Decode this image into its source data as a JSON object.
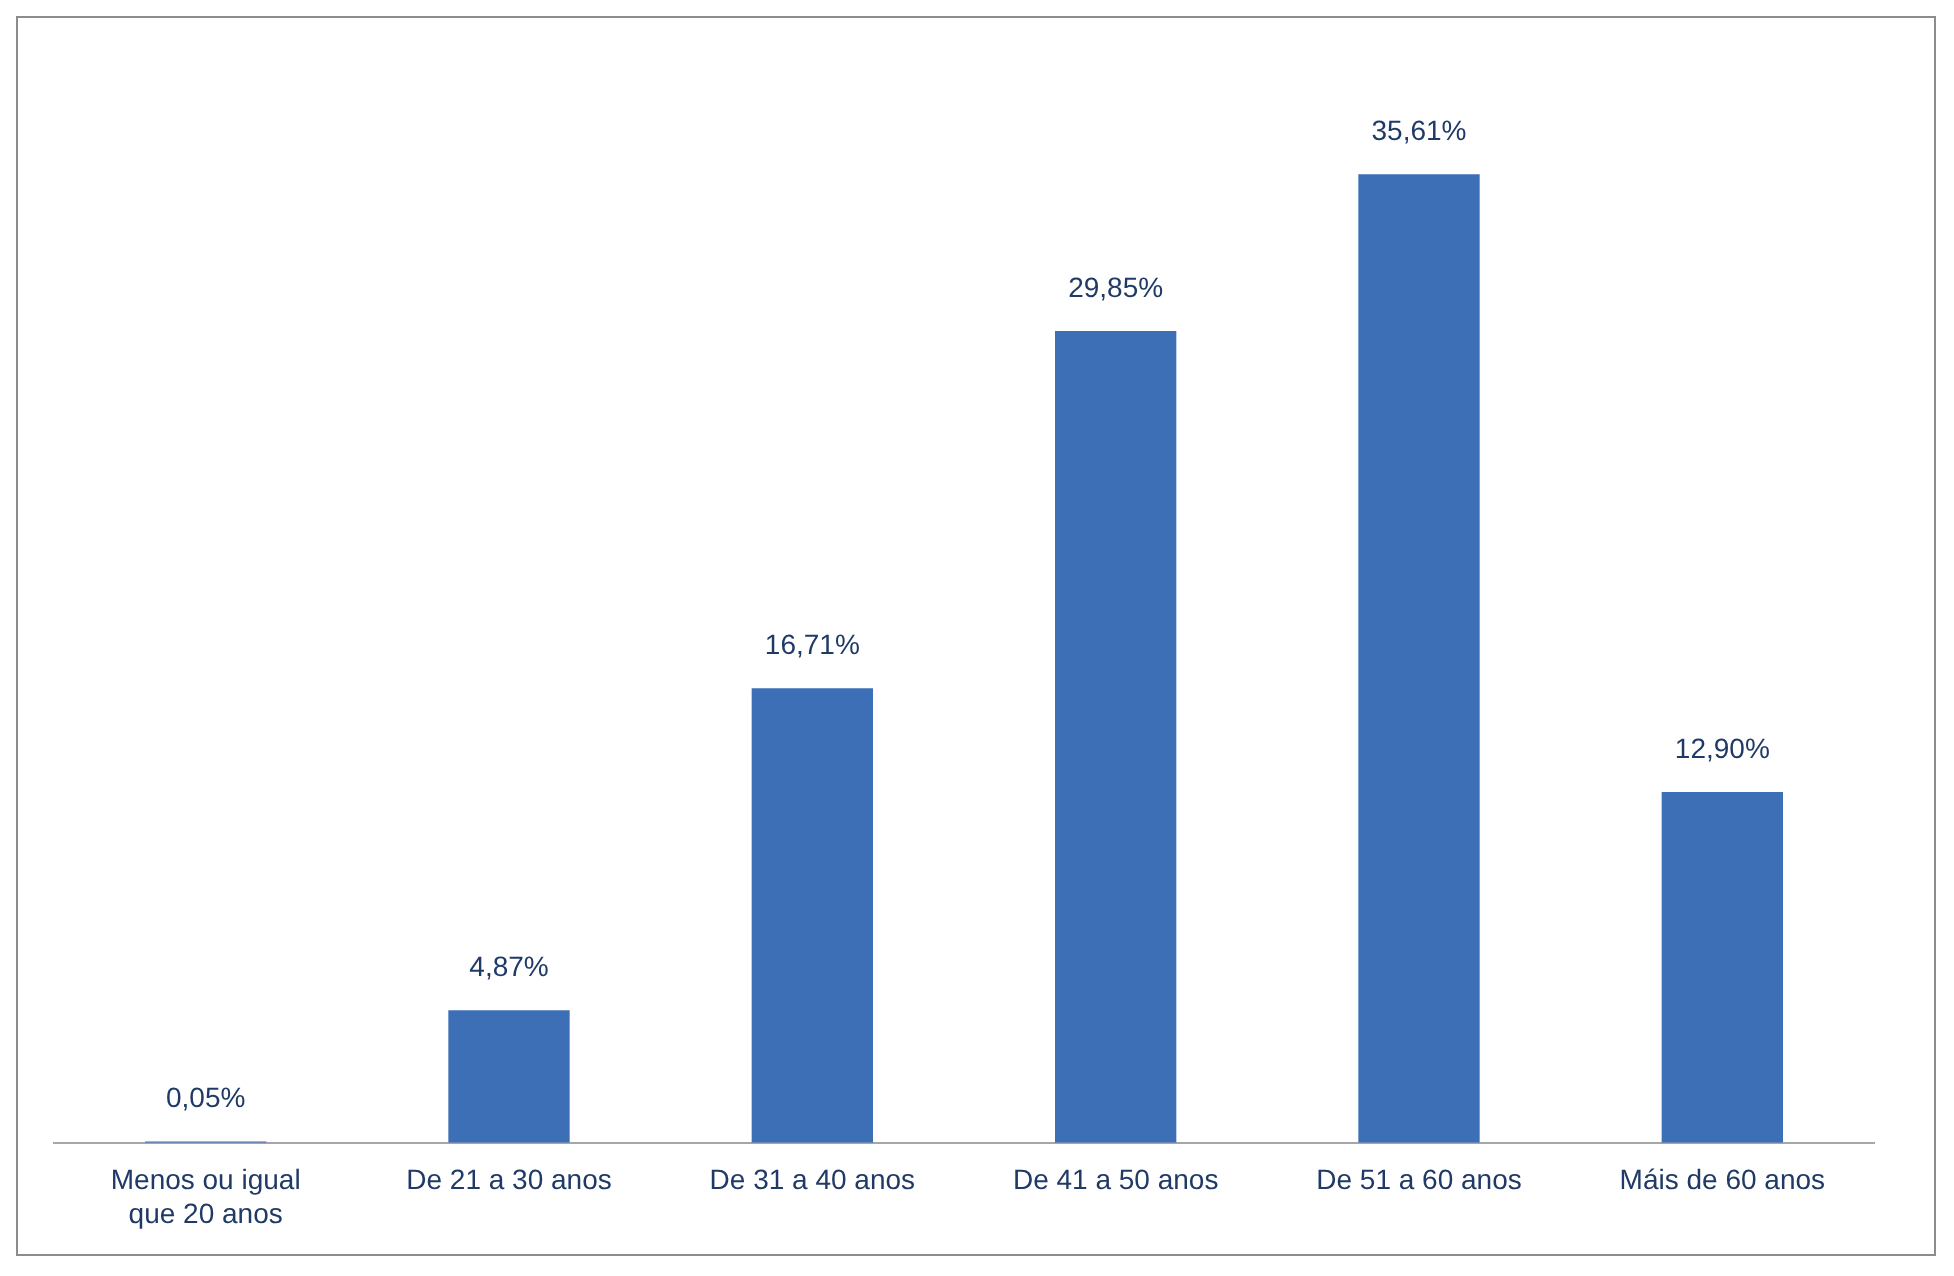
{
  "chart_data": {
    "type": "bar",
    "categories": [
      "Menos ou igual que 20 anos",
      "De 21 a 30 anos",
      "De 31 a 40 anos",
      "De 41 a 50 anos",
      "De 51 a 60 anos",
      "Máis de 60 anos"
    ],
    "values": [
      0.05,
      4.87,
      16.71,
      29.85,
      35.61,
      12.9
    ],
    "value_labels": [
      "0,05%",
      "4,87%",
      "16,71%",
      "29,85%",
      "35,61%",
      "12,90%"
    ],
    "color": "#3d6fb6",
    "grid": false,
    "legend": false
  }
}
